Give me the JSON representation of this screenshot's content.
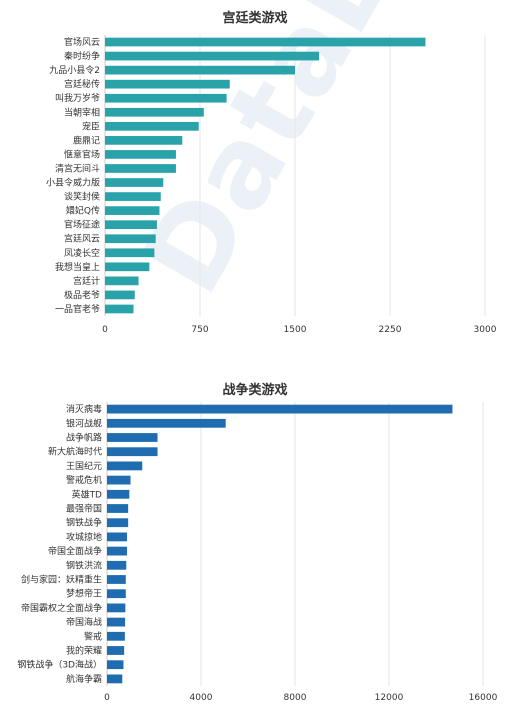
{
  "watermark": "DataEye",
  "chart_data": [
    {
      "type": "bar",
      "orientation": "horizontal",
      "title": "宫廷类游戏",
      "color": "#2aa2aa",
      "xlim": [
        0,
        3000
      ],
      "ticks": [
        0,
        750,
        1500,
        2250,
        3000
      ],
      "grid": true,
      "categories": [
        "官场风云",
        "秦时纷争",
        "九品小县令2",
        "宫廷秘传",
        "叫我万岁爷",
        "当朝宰相",
        "宠臣",
        "鹿鼎记",
        "惬意官场",
        "清宫无间斗",
        "小县令威力版",
        "谈笑封侯",
        "嬛妃Q传",
        "官场征途",
        "宫廷风云",
        "凤凌长空",
        "我想当皇上",
        "宫廷计",
        "极品老爷",
        "一品官老爷"
      ],
      "values": [
        2530,
        1690,
        1500,
        985,
        960,
        780,
        740,
        610,
        560,
        560,
        460,
        440,
        430,
        410,
        400,
        390,
        350,
        265,
        235,
        225
      ]
    },
    {
      "type": "bar",
      "orientation": "horizontal",
      "title": "战争类游戏",
      "color": "#1f6db0",
      "xlim": [
        0,
        16000
      ],
      "ticks": [
        0,
        4000,
        8000,
        12000,
        16000
      ],
      "grid": true,
      "categories": [
        "消灭病毒",
        "银河战舰",
        "战争帆路",
        "新大航海时代",
        "王国纪元",
        "警戒危机",
        "英雄TD",
        "最强帝国",
        "钢铁战争",
        "攻城掠地",
        "帝国全面战争",
        "钢铁洪流",
        "剑与家园：妖精重生",
        "梦想帝王",
        "帝国霸权之全面战争",
        "帝国海战",
        "警戒",
        "我的荣耀",
        "钢铁战争（3D海战）",
        "航海争霸"
      ],
      "values": [
        14700,
        5050,
        2150,
        2150,
        1500,
        1000,
        950,
        900,
        900,
        850,
        850,
        820,
        800,
        800,
        780,
        770,
        760,
        730,
        700,
        650
      ]
    }
  ]
}
